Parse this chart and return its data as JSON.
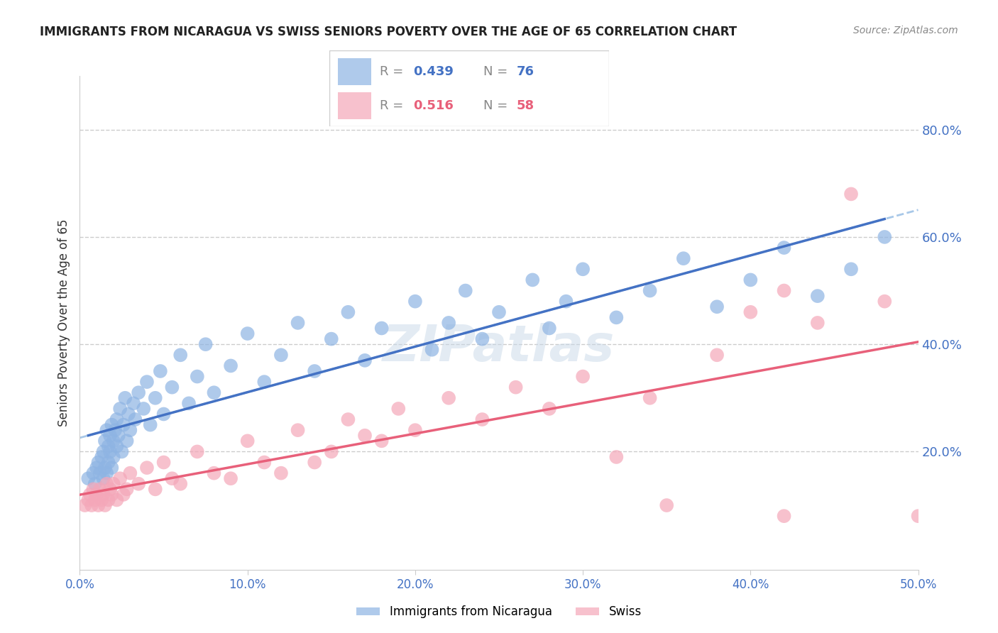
{
  "title": "IMMIGRANTS FROM NICARAGUA VS SWISS SENIORS POVERTY OVER THE AGE OF 65 CORRELATION CHART",
  "source": "Source: ZipAtlas.com",
  "ylabel": "Seniors Poverty Over the Age of 65",
  "legend_label1": "Immigrants from Nicaragua",
  "legend_label2": "Swiss",
  "R1": 0.439,
  "N1": 76,
  "R2": 0.516,
  "N2": 58,
  "xlim": [
    0.0,
    0.5
  ],
  "ylim": [
    -0.02,
    0.9
  ],
  "yticks_right": [
    0.2,
    0.4,
    0.6,
    0.8
  ],
  "ytick_labels_right": [
    "20.0%",
    "40.0%",
    "60.0%",
    "80.0%"
  ],
  "xticks": [
    0.0,
    0.1,
    0.2,
    0.3,
    0.4,
    0.5
  ],
  "xtick_labels": [
    "0.0%",
    "10.0%",
    "20.0%",
    "30.0%",
    "40.0%",
    "50.0%"
  ],
  "color_blue": "#8eb4e3",
  "color_pink": "#f4a7b9",
  "color_blue_line": "#4472c4",
  "color_pink_line": "#e8607a",
  "color_dashed": "#a8c8e8",
  "watermark": "ZIPatlas",
  "blue_scatter_x": [
    0.005,
    0.008,
    0.009,
    0.01,
    0.011,
    0.012,
    0.013,
    0.014,
    0.014,
    0.015,
    0.015,
    0.016,
    0.016,
    0.017,
    0.017,
    0.018,
    0.018,
    0.019,
    0.019,
    0.02,
    0.02,
    0.021,
    0.022,
    0.022,
    0.023,
    0.024,
    0.025,
    0.026,
    0.027,
    0.028,
    0.029,
    0.03,
    0.032,
    0.033,
    0.035,
    0.038,
    0.04,
    0.042,
    0.045,
    0.048,
    0.05,
    0.055,
    0.06,
    0.065,
    0.07,
    0.075,
    0.08,
    0.09,
    0.1,
    0.11,
    0.12,
    0.13,
    0.14,
    0.15,
    0.16,
    0.17,
    0.18,
    0.2,
    0.21,
    0.22,
    0.23,
    0.24,
    0.25,
    0.27,
    0.28,
    0.29,
    0.3,
    0.32,
    0.34,
    0.36,
    0.38,
    0.4,
    0.42,
    0.44,
    0.46,
    0.48
  ],
  "blue_scatter_y": [
    0.15,
    0.16,
    0.14,
    0.17,
    0.18,
    0.16,
    0.19,
    0.15,
    0.2,
    0.17,
    0.22,
    0.16,
    0.24,
    0.18,
    0.21,
    0.2,
    0.23,
    0.17,
    0.25,
    0.19,
    0.22,
    0.24,
    0.21,
    0.26,
    0.23,
    0.28,
    0.2,
    0.25,
    0.3,
    0.22,
    0.27,
    0.24,
    0.29,
    0.26,
    0.31,
    0.28,
    0.33,
    0.25,
    0.3,
    0.35,
    0.27,
    0.32,
    0.38,
    0.29,
    0.34,
    0.4,
    0.31,
    0.36,
    0.42,
    0.33,
    0.38,
    0.44,
    0.35,
    0.41,
    0.46,
    0.37,
    0.43,
    0.48,
    0.39,
    0.44,
    0.5,
    0.41,
    0.46,
    0.52,
    0.43,
    0.48,
    0.54,
    0.45,
    0.5,
    0.56,
    0.47,
    0.52,
    0.58,
    0.49,
    0.54,
    0.6
  ],
  "pink_scatter_x": [
    0.003,
    0.005,
    0.006,
    0.007,
    0.008,
    0.009,
    0.01,
    0.011,
    0.012,
    0.013,
    0.014,
    0.015,
    0.016,
    0.017,
    0.018,
    0.019,
    0.02,
    0.022,
    0.024,
    0.026,
    0.028,
    0.03,
    0.035,
    0.04,
    0.045,
    0.05,
    0.055,
    0.06,
    0.07,
    0.08,
    0.09,
    0.1,
    0.11,
    0.12,
    0.13,
    0.14,
    0.15,
    0.16,
    0.17,
    0.18,
    0.19,
    0.2,
    0.22,
    0.24,
    0.26,
    0.28,
    0.3,
    0.34,
    0.38,
    0.4,
    0.42,
    0.44,
    0.46,
    0.48,
    0.35,
    0.5,
    0.32,
    0.42
  ],
  "pink_scatter_y": [
    0.1,
    0.11,
    0.12,
    0.1,
    0.13,
    0.11,
    0.12,
    0.1,
    0.13,
    0.11,
    0.12,
    0.1,
    0.14,
    0.11,
    0.13,
    0.12,
    0.14,
    0.11,
    0.15,
    0.12,
    0.13,
    0.16,
    0.14,
    0.17,
    0.13,
    0.18,
    0.15,
    0.14,
    0.2,
    0.16,
    0.15,
    0.22,
    0.18,
    0.16,
    0.24,
    0.18,
    0.2,
    0.26,
    0.23,
    0.22,
    0.28,
    0.24,
    0.3,
    0.26,
    0.32,
    0.28,
    0.34,
    0.3,
    0.38,
    0.46,
    0.5,
    0.44,
    0.68,
    0.48,
    0.1,
    0.08,
    0.19,
    0.08
  ]
}
